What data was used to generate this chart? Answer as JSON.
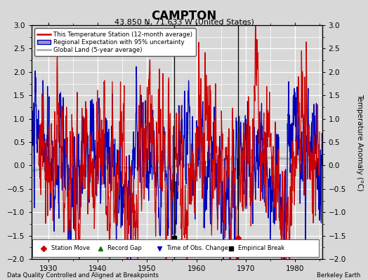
{
  "title": "CAMPTON",
  "subtitle": "43.850 N, 71.633 W (United States)",
  "ylabel": "Temperature Anomaly (°C)",
  "footer_left": "Data Quality Controlled and Aligned at Breakpoints",
  "footer_right": "Berkeley Earth",
  "xlim": [
    1926.5,
    1985.5
  ],
  "ylim": [
    -2.0,
    3.0
  ],
  "yticks": [
    -2,
    -1.5,
    -1,
    -0.5,
    0,
    0.5,
    1,
    1.5,
    2,
    2.5,
    3
  ],
  "xticks": [
    1930,
    1940,
    1950,
    1960,
    1970,
    1980
  ],
  "bg_color": "#d8d8d8",
  "plot_bg_color": "#d8d8d8",
  "grid_color": "#ffffff",
  "red_line_color": "#cc0000",
  "blue_line_color": "#0000bb",
  "blue_fill_color": "#9999cc",
  "gray_line_color": "#b0b0b0",
  "marker_red_color": "#cc0000",
  "marker_green_color": "#007700",
  "marker_blue_color": "#0000cc",
  "marker_black_color": "#000000",
  "empirical_break_x": 1955.5,
  "station_move_x": 1968.5,
  "vertical_line_x1": 1955.5,
  "vertical_line_x2": 1968.5,
  "seed": 42
}
